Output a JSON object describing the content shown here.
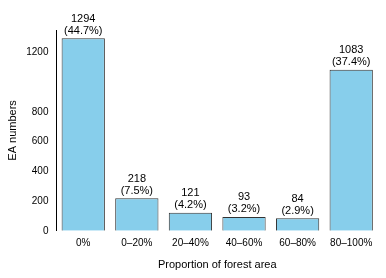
{
  "chart_data": {
    "type": "bar",
    "x_label": "Proportion of forest area",
    "y_label": "EA numbers",
    "categories": [
      "0%",
      "0–20%",
      "20–40%",
      "40–60%",
      "60–80%",
      "80–100%"
    ],
    "values": [
      1294,
      218,
      121,
      93,
      84,
      1083
    ],
    "value_labels": [
      "1294\n(44.7%)",
      "218\n(7.5%)",
      "121\n(4.2%)",
      "93\n(3.2%)",
      "84\n(2.9%)",
      "1083\n(37.4%)"
    ],
    "data_labels": true,
    "color": "#87ceeb",
    "ylim": [
      0,
      1350
    ],
    "yticks": [
      0,
      200,
      400,
      600,
      800,
      1200
    ],
    "grid": false
  }
}
